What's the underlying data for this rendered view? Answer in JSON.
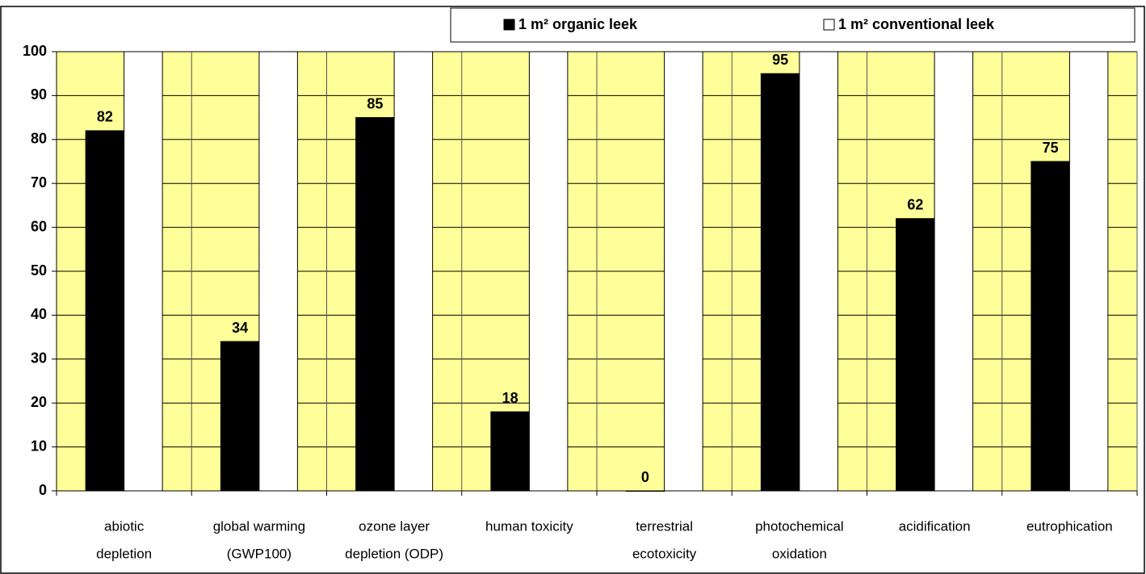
{
  "chart_data": {
    "type": "bar",
    "categories": [
      [
        "abiotic",
        "depletion"
      ],
      [
        "global warming",
        "(GWP100)"
      ],
      [
        "ozone layer",
        "depletion (ODP)"
      ],
      [
        "human  toxicity"
      ],
      [
        "terrestrial",
        "ecotoxicity"
      ],
      [
        "photochemical",
        "oxidation"
      ],
      [
        "acidification"
      ],
      [
        "eutrophication"
      ]
    ],
    "series": [
      {
        "name": "1 m² organic leek",
        "color": "#000000",
        "values": [
          82,
          34,
          85,
          18,
          0,
          95,
          62,
          75
        ]
      },
      {
        "name": "1 m² conventional leek",
        "color": "#ffffff",
        "values": [
          100,
          100,
          100,
          100,
          100,
          100,
          100,
          100
        ]
      }
    ],
    "label_series": [
      0
    ],
    "ylim": [
      0,
      100
    ],
    "yticks": [
      0,
      10,
      20,
      30,
      40,
      50,
      60,
      70,
      80,
      90,
      100
    ],
    "grid": true,
    "legend": "top",
    "background": "#ffff99"
  }
}
